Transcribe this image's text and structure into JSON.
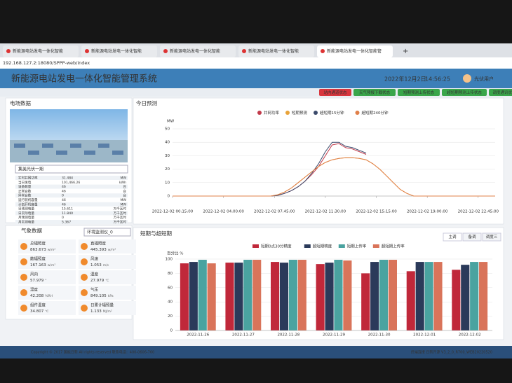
{
  "browser": {
    "tabs": [
      "新能源电站发电一体化智能",
      "新能源电站发电一体化智能",
      "新能源电站发电一体化智能",
      "新能源电站发电一体化智能",
      "新能源电站发电一体化智能管"
    ],
    "url": "192.168.127.2:18080/SPPP-web/index"
  },
  "header": {
    "title": "新能源电站发电一体化智能管理系统",
    "date": "2022年12月2日",
    "time": "14:56:25",
    "user": "光伏用户"
  },
  "status": [
    {
      "label": "站内通道状态",
      "color": "#d9363e"
    },
    {
      "label": "天气预报下载状态",
      "color": "#3aa64a"
    },
    {
      "label": "短期预测上传状态",
      "color": "#3aa64a"
    },
    {
      "label": "超短期预测上传状态",
      "color": "#3aa64a"
    },
    {
      "label": "调度通讯状态",
      "color": "#3aa64a"
    }
  ],
  "plant": {
    "title": "电场数据",
    "select": "集美光伏一期",
    "rows": [
      [
        "实时并网功率",
        "31.484",
        "MW"
      ],
      [
        "当日发电",
        "101,466.26",
        "kWh"
      ],
      [
        "设备数量",
        "46",
        "台"
      ],
      [
        "正常台数",
        "46",
        "台"
      ],
      [
        "异常台数",
        "0",
        "台"
      ],
      [
        "运行装机容量",
        "46",
        "MW"
      ],
      [
        "计划开机容量",
        "46",
        "MW"
      ],
      [
        "日预测电量",
        "15.611",
        "万千瓦时"
      ],
      [
        "日实际电量",
        "11.840",
        "万千瓦时"
      ],
      [
        "月预测电量",
        "0",
        "万千瓦时"
      ],
      [
        "月实测电量",
        "5.367",
        "万千瓦时"
      ]
    ]
  },
  "weather": {
    "title": "气象数据",
    "select": "环境监测仪_0",
    "tiles": [
      {
        "label": "总辐照度",
        "value": "863.673",
        "unit": "w/m²"
      },
      {
        "label": "直辐照度",
        "value": "445.393",
        "unit": "w/m²"
      },
      {
        "label": "散辐照度",
        "value": "167.163",
        "unit": "w/m²"
      },
      {
        "label": "风速",
        "value": "1.053",
        "unit": "m/s"
      },
      {
        "label": "风向",
        "value": "57.979",
        "unit": "°"
      },
      {
        "label": "温度",
        "value": "27.979",
        "unit": "℃"
      },
      {
        "label": "湿度",
        "value": "42.208",
        "unit": "%RH"
      },
      {
        "label": "气压",
        "value": "849.105",
        "unit": "kPa"
      },
      {
        "label": "组件温度",
        "value": "34.807",
        "unit": "℃"
      },
      {
        "label": "日累计辐照量",
        "value": "1.133",
        "unit": "MJ/m²"
      }
    ]
  },
  "chart_data": [
    {
      "type": "line",
      "title": "今日预测",
      "y_label": "MW",
      "x": [
        0.25,
        2,
        4,
        6,
        7,
        7.5,
        8,
        8.5,
        9,
        9.5,
        10,
        10.5,
        11,
        11.5,
        12,
        12.5,
        13,
        13.5,
        14,
        14.5,
        15,
        15.5,
        16,
        16.5,
        17,
        17.5,
        18,
        20,
        22,
        24
      ],
      "xlim": [
        0.25,
        24
      ],
      "xticks": [
        {
          "value": 0.25,
          "label": "2022-12-02 00:15:00"
        },
        {
          "value": 4,
          "label": "2022-12-02 04:00:00"
        },
        {
          "value": 7.75,
          "label": "2022-12-02 07:45:00"
        },
        {
          "value": 11.5,
          "label": "2022-12-02 11:30:00"
        },
        {
          "value": 15.25,
          "label": "2022-12-02 15:15:00"
        },
        {
          "value": 19,
          "label": "2022-12-02 19:00:00"
        },
        {
          "value": 22.75,
          "label": "2022-12-02 22:45:00"
        }
      ],
      "ylim": [
        0,
        50
      ],
      "yticks": [
        0,
        10,
        20,
        30,
        40,
        50
      ],
      "grid": true,
      "series": [
        {
          "name": "并网功率",
          "color": "#c23a4a",
          "values": [
            0,
            0,
            0,
            0,
            0,
            0,
            0.5,
            2,
            4,
            7,
            11,
            16,
            22,
            30,
            38,
            39,
            36,
            35,
            33,
            31,
            null,
            null,
            null,
            null,
            null,
            null,
            null,
            null,
            null,
            null
          ]
        },
        {
          "name": "短期预测",
          "color": "#e8a33a",
          "values": [
            0,
            0,
            0,
            0,
            0,
            0,
            1,
            3,
            6,
            10,
            14,
            18,
            22,
            25,
            27,
            28,
            28.5,
            28.5,
            28,
            27,
            24,
            20,
            15,
            10,
            5,
            2,
            0,
            0,
            0,
            0
          ]
        },
        {
          "name": "超短期15分钟",
          "color": "#3b4a6b",
          "values": [
            0,
            0,
            0,
            0,
            0,
            0,
            0.5,
            2,
            4,
            7,
            11,
            17,
            24,
            33,
            40,
            40,
            37,
            36,
            34,
            32,
            null,
            null,
            null,
            null,
            null,
            null,
            null,
            null,
            null,
            null
          ]
        },
        {
          "name": "超短期240分钟",
          "color": "#e0804a",
          "values": [
            0,
            0,
            0,
            0,
            0,
            0,
            1,
            3,
            6,
            10,
            14,
            18,
            22,
            25,
            27,
            28,
            28.5,
            28.5,
            28,
            27,
            24,
            20,
            15,
            10,
            5,
            2,
            0,
            0,
            0,
            0
          ]
        }
      ]
    },
    {
      "type": "bar",
      "title": "短期与超短期",
      "tabs": [
        "主调",
        "备调",
        "调度三"
      ],
      "y_label": "百分比 %",
      "categories": [
        "2022-11-26",
        "2022-11-27",
        "2022-11-28",
        "2022-11-29",
        "2022-11-30",
        "2022-12-01",
        "2022-12-02"
      ],
      "ylim": [
        0,
        100
      ],
      "yticks": [
        0,
        20,
        40,
        60,
        80,
        100
      ],
      "grid": true,
      "series": [
        {
          "name": "短期0点30分精度",
          "color": "#c0283a",
          "values": [
            94,
            95,
            96,
            93,
            80,
            83,
            85
          ]
        },
        {
          "name": "超短期精度",
          "color": "#2b3a5a",
          "values": [
            96,
            95,
            95,
            95,
            96,
            96,
            92
          ]
        },
        {
          "name": "短期上传率",
          "color": "#4aa3a0",
          "values": [
            99,
            99,
            99,
            99,
            99,
            96,
            96
          ]
        },
        {
          "name": "超短期上传率",
          "color": "#d9745a",
          "values": [
            94,
            99,
            99,
            98,
            99,
            96,
            96
          ]
        }
      ]
    }
  ],
  "footer": {
    "left": "Copyright © 2017 国能日新  All rights reserved  联系电话：400-0606-760",
    "right": "终端连接  日新开源  V3_2_0_R700_WEB20220520"
  }
}
